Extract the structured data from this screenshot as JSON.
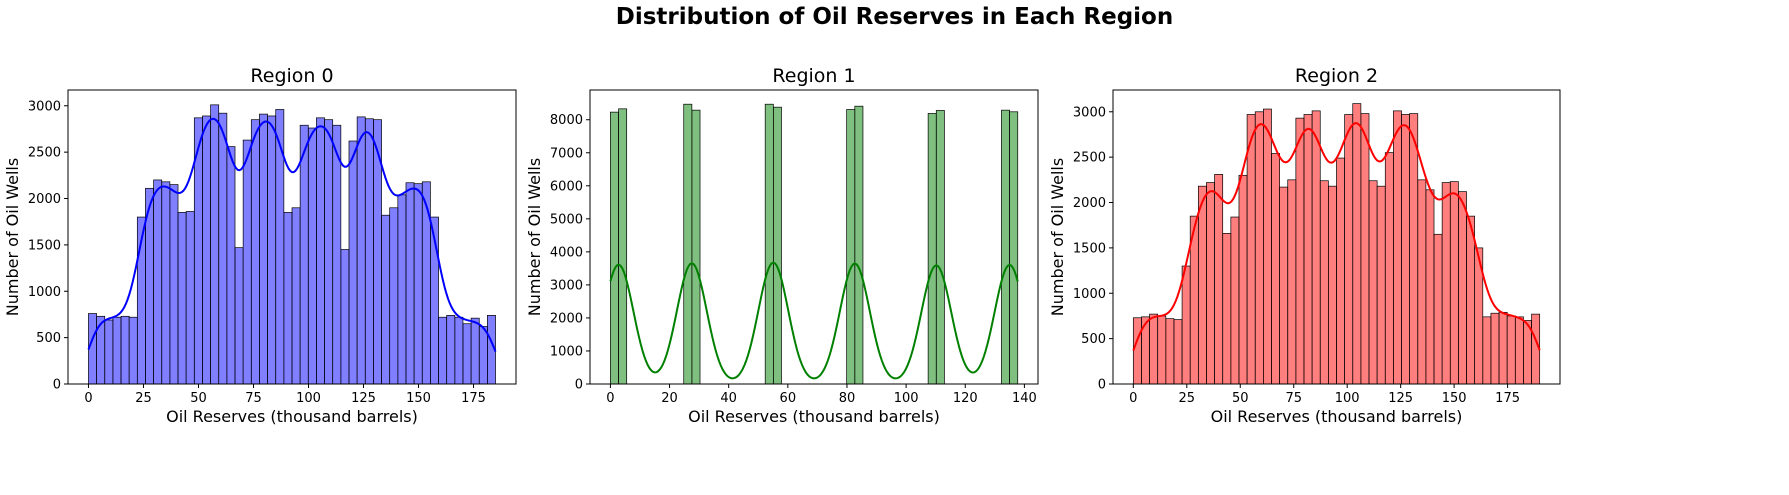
{
  "figure": {
    "title": "Distribution of Oil Reserves in Each Region"
  },
  "chart_data": [
    {
      "type": "bar",
      "histogram": true,
      "title": "Region 0",
      "xlabel": "Oil Reserves (thousand barrels)",
      "ylabel": "Number of Oil Wells",
      "color": "#0000ff",
      "kde": true,
      "xlim": [
        -9.3,
        194.3
      ],
      "ylim": [
        0,
        3170
      ],
      "xticks": [
        0,
        25,
        50,
        75,
        100,
        125,
        150,
        175
      ],
      "yticks": [
        0,
        500,
        1000,
        1500,
        2000,
        2500,
        3000
      ],
      "bin_start": 0,
      "bin_width": 3.7,
      "values": [
        760,
        730,
        690,
        720,
        730,
        720,
        1800,
        2110,
        2200,
        2180,
        2150,
        1850,
        1860,
        2870,
        2890,
        3010,
        2920,
        2560,
        1470,
        2630,
        2850,
        2910,
        2890,
        2960,
        1850,
        1900,
        2790,
        2760,
        2870,
        2850,
        2790,
        1450,
        2620,
        2880,
        2860,
        2850,
        1820,
        1900,
        2040,
        2170,
        2160,
        2180,
        1800,
        720,
        740,
        720,
        650,
        710,
        620,
        740
      ]
    },
    {
      "type": "bar",
      "histogram": true,
      "title": "Region 1",
      "xlabel": "Oil Reserves (thousand barrels)",
      "ylabel": "Number of Oil Wells",
      "color": "#008000",
      "kde": true,
      "xlim": [
        -6.9,
        144.6
      ],
      "ylim": [
        0,
        8900
      ],
      "xticks": [
        0,
        20,
        40,
        60,
        80,
        100,
        120,
        140
      ],
      "yticks": [
        0,
        1000,
        2000,
        3000,
        4000,
        5000,
        6000,
        7000,
        8000
      ],
      "bin_start": 0,
      "bin_width": 2.755,
      "values": [
        8230,
        8330,
        0,
        0,
        0,
        0,
        0,
        0,
        0,
        8470,
        8290,
        0,
        0,
        0,
        0,
        0,
        0,
        0,
        0,
        8470,
        8380,
        0,
        0,
        0,
        0,
        0,
        0,
        0,
        0,
        8310,
        8410,
        0,
        0,
        0,
        0,
        0,
        0,
        0,
        0,
        8190,
        8280,
        0,
        0,
        0,
        0,
        0,
        0,
        0,
        8290,
        8240
      ]
    },
    {
      "type": "bar",
      "histogram": true,
      "title": "Region 2",
      "xlabel": "Oil Reserves (thousand barrels)",
      "ylabel": "Number of Oil Wells",
      "color": "#ff0000",
      "kde": true,
      "xlim": [
        -9.5,
        199.5
      ],
      "ylim": [
        0,
        3240
      ],
      "xticks": [
        0,
        25,
        50,
        75,
        100,
        125,
        150,
        175
      ],
      "yticks": [
        0,
        500,
        1000,
        1500,
        2000,
        2500,
        3000
      ],
      "bin_start": 0,
      "bin_width": 3.8,
      "values": [
        730,
        740,
        770,
        750,
        720,
        710,
        1300,
        1850,
        2180,
        2220,
        2310,
        1660,
        1840,
        2300,
        2970,
        3000,
        3030,
        2540,
        2170,
        2250,
        2930,
        2970,
        3010,
        2240,
        2180,
        2490,
        2970,
        3090,
        2980,
        2240,
        2180,
        2550,
        3010,
        2970,
        2980,
        2250,
        2140,
        1650,
        2220,
        2230,
        2120,
        1850,
        1500,
        740,
        780,
        790,
        750,
        740,
        700,
        770
      ]
    }
  ]
}
